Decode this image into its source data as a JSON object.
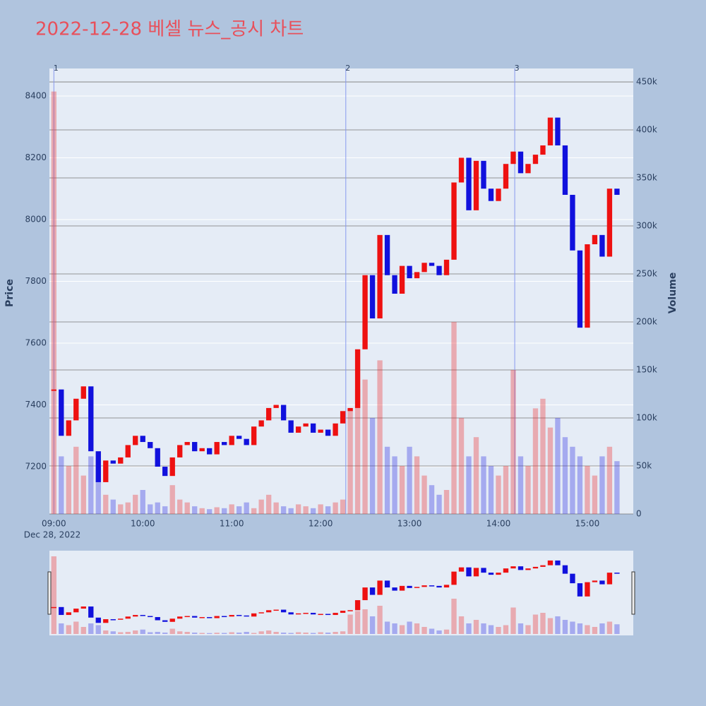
{
  "chart_data": {
    "type": "candlestick",
    "title": "2022-12-28 베셀 뉴스_공시 차트",
    "y_label": "Price",
    "y2_label": "Volume",
    "x_sublabel": "Dec 28, 2022",
    "up_color": "#ee1111",
    "down_color": "#1111dd",
    "x": [
      "09:00",
      "09:05",
      "09:10",
      "09:15",
      "09:20",
      "09:25",
      "09:30",
      "09:35",
      "09:40",
      "09:45",
      "09:50",
      "09:55",
      "10:00",
      "10:05",
      "10:10",
      "10:15",
      "10:20",
      "10:25",
      "10:30",
      "10:35",
      "10:40",
      "10:45",
      "10:50",
      "10:55",
      "11:00",
      "11:05",
      "11:10",
      "11:15",
      "11:20",
      "11:25",
      "11:30",
      "11:35",
      "11:40",
      "11:45",
      "11:50",
      "11:55",
      "12:00",
      "12:05",
      "12:10",
      "12:15",
      "12:20",
      "12:25",
      "12:30",
      "12:35",
      "12:40",
      "12:45",
      "12:50",
      "12:55",
      "13:00",
      "13:05",
      "13:10",
      "13:15",
      "13:20",
      "13:25",
      "13:30",
      "13:35",
      "13:40",
      "13:45",
      "13:50",
      "13:55",
      "14:00",
      "14:05",
      "14:10",
      "14:15",
      "14:20",
      "14:25",
      "14:30",
      "14:35",
      "14:40",
      "14:45",
      "14:50",
      "14:55",
      "15:00",
      "15:05",
      "15:10",
      "15:15",
      "15:20"
    ],
    "series": [
      {
        "name": "Price",
        "values": [
          7450,
          7300,
          7350,
          7420,
          7460,
          7250,
          7150,
          7220,
          7210,
          7230,
          7270,
          7300,
          7280,
          7260,
          7200,
          7170,
          7230,
          7270,
          7280,
          7250,
          7260,
          7240,
          7280,
          7270,
          7300,
          7290,
          7270,
          7330,
          7350,
          7390,
          7400,
          7350,
          7310,
          7330,
          7340,
          7310,
          7320,
          7300,
          7340,
          7380,
          7390,
          7580,
          7820,
          7680,
          7950,
          7820,
          7760,
          7850,
          7810,
          7830,
          7860,
          7850,
          7820,
          7870,
          8120,
          8200,
          8030,
          8190,
          8100,
          8060,
          8100,
          8180,
          8220,
          8150,
          8180,
          8210,
          8240,
          8330,
          8240,
          8080,
          7900,
          7650,
          7920,
          7950,
          7880,
          8100,
          8080
        ]
      },
      {
        "name": "Volume",
        "axis": "y2",
        "values": [
          440000,
          60000,
          50000,
          70000,
          40000,
          60000,
          50000,
          20000,
          15000,
          10000,
          12000,
          20000,
          25000,
          10000,
          12000,
          8000,
          30000,
          15000,
          12000,
          8000,
          6000,
          5000,
          7000,
          6000,
          10000,
          8000,
          12000,
          6000,
          15000,
          20000,
          12000,
          8000,
          6000,
          10000,
          8000,
          6000,
          10000,
          8000,
          12000,
          15000,
          110000,
          130000,
          140000,
          100000,
          160000,
          70000,
          60000,
          50000,
          70000,
          60000,
          40000,
          30000,
          20000,
          25000,
          200000,
          100000,
          60000,
          80000,
          60000,
          50000,
          40000,
          50000,
          150000,
          60000,
          50000,
          110000,
          120000,
          90000,
          100000,
          80000,
          70000,
          60000,
          50000,
          40000,
          60000,
          70000,
          55000
        ]
      }
    ],
    "events": [
      {
        "x": "09:00",
        "label": "1"
      },
      {
        "x": "12:17",
        "label": "2"
      },
      {
        "x": "14:11",
        "label": "3"
      }
    ],
    "xlim": [
      "08:57",
      "15:31"
    ],
    "xticks": [
      "09:00",
      "10:00",
      "11:00",
      "12:00",
      "13:00",
      "14:00",
      "15:00"
    ],
    "ylim": [
      7047,
      8489
    ],
    "yticks": [
      7200,
      7400,
      7600,
      7800,
      8000,
      8200,
      8400
    ],
    "y2lim": [
      0,
      464000
    ],
    "y2ticks": [
      0,
      {
        "value": 50000,
        "label": "50k"
      },
      {
        "value": 100000,
        "label": "100k"
      },
      {
        "value": 150000,
        "label": "150k"
      },
      {
        "value": 200000,
        "label": "200k"
      },
      {
        "value": 250000,
        "label": "250k"
      },
      {
        "value": 300000,
        "label": "300k"
      },
      {
        "value": 350000,
        "label": "350k"
      },
      {
        "value": 400000,
        "label": "400k"
      },
      {
        "value": 450000,
        "label": "450k"
      }
    ],
    "grid": true,
    "range_slider": true
  }
}
